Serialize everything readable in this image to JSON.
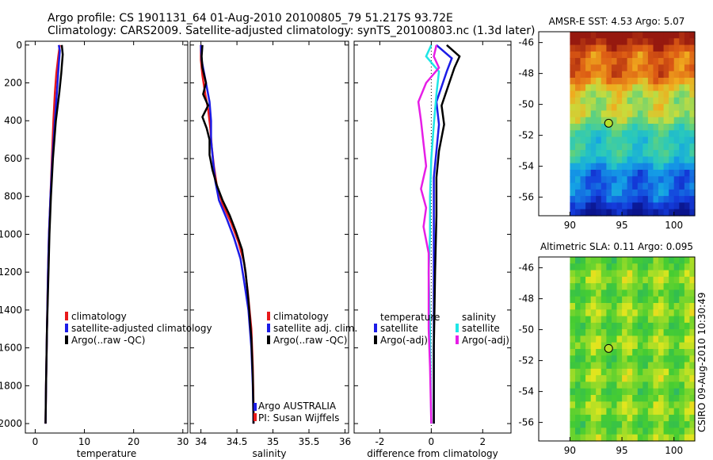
{
  "header": {
    "line1": "Argo profile: CS 1901131_64 01-Aug-2010 20100805_79 51.217S 93.72E",
    "line2": "Climatology: CARS2009. Satellite-adjusted climatology: synTS_20100803.nc (1.3d later)"
  },
  "footer_vertical": "CSIRO 09-Aug-2010 10:30:49",
  "colors": {
    "red": "#e8191b",
    "blue": "#1c1ce6",
    "black": "#000000",
    "cyan": "#1ee6e6",
    "magenta": "#e61ee6"
  },
  "chart_data": [
    {
      "type": "line",
      "id": "temperature",
      "xlabel": "temperature",
      "ylabel": "",
      "xlim": [
        -2,
        31
      ],
      "ylim": [
        2050,
        -20
      ],
      "xticks": [
        0,
        10,
        20,
        30
      ],
      "yticks": [
        0,
        200,
        400,
        600,
        800,
        1000,
        1200,
        1400,
        1600,
        1800,
        2000
      ],
      "xtick_labels": [
        "0",
        "10",
        "20",
        "30"
      ],
      "legend": [
        "climatology",
        "satellite-adjusted climatology",
        "Argo(..raw -QC)"
      ],
      "series": [
        {
          "name": "climatology",
          "color": "red",
          "values": [
            [
              5,
              0
            ],
            [
              4.7,
              60
            ],
            [
              4.3,
              150
            ],
            [
              4,
              250
            ],
            [
              3.7,
              400
            ],
            [
              3.4,
              600
            ],
            [
              3.1,
              800
            ],
            [
              2.8,
              1000
            ],
            [
              2.6,
              1200
            ],
            [
              2.4,
              1500
            ],
            [
              2.2,
              1800
            ],
            [
              2.1,
              2000
            ]
          ]
        },
        {
          "name": "satellite-adjusted climatology",
          "color": "blue",
          "values": [
            [
              4.8,
              0
            ],
            [
              5,
              30
            ],
            [
              4.8,
              100
            ],
            [
              4.4,
              250
            ],
            [
              4,
              400
            ],
            [
              3.5,
              600
            ],
            [
              3.1,
              800
            ],
            [
              2.8,
              1000
            ],
            [
              2.6,
              1200
            ],
            [
              2.4,
              1500
            ],
            [
              2.2,
              1800
            ],
            [
              2.1,
              2000
            ]
          ]
        },
        {
          "name": "Argo(..raw -QC)",
          "color": "black",
          "values": [
            [
              5.4,
              0
            ],
            [
              5.6,
              50
            ],
            [
              5.3,
              150
            ],
            [
              4.9,
              250
            ],
            [
              4.2,
              400
            ],
            [
              3.6,
              600
            ],
            [
              3.2,
              800
            ],
            [
              2.9,
              1000
            ],
            [
              2.7,
              1200
            ],
            [
              2.4,
              1500
            ],
            [
              2.2,
              1800
            ],
            [
              2.1,
              2000
            ]
          ]
        }
      ]
    },
    {
      "type": "line",
      "id": "salinity",
      "xlabel": "salinity",
      "xlim": [
        33.85,
        36.05
      ],
      "ylim": [
        2050,
        -20
      ],
      "xticks": [
        34,
        34.5,
        35,
        35.5,
        36
      ],
      "xtick_labels": [
        "34",
        "34.5",
        "35",
        "35.5",
        "36"
      ],
      "legend": [
        "climatology",
        "satellite adj. clim.",
        "Argo(..raw -QC)"
      ],
      "annotation": [
        "Argo AUSTRALIA",
        "PI: Susan Wijffels"
      ],
      "series": [
        {
          "name": "climatology",
          "color": "red",
          "values": [
            [
              34.0,
              0
            ],
            [
              34.0,
              80
            ],
            [
              34.02,
              160
            ],
            [
              34.06,
              260
            ],
            [
              34.1,
              340
            ],
            [
              34.13,
              440
            ],
            [
              34.15,
              540
            ],
            [
              34.18,
              640
            ],
            [
              34.22,
              740
            ],
            [
              34.3,
              840
            ],
            [
              34.42,
              940
            ],
            [
              34.52,
              1040
            ],
            [
              34.6,
              1150
            ],
            [
              34.65,
              1300
            ],
            [
              34.7,
              1500
            ],
            [
              34.72,
              1700
            ],
            [
              34.73,
              1900
            ],
            [
              34.73,
              2000
            ]
          ]
        },
        {
          "name": "satellite adj. clim.",
          "color": "blue",
          "values": [
            [
              34.0,
              0
            ],
            [
              34.01,
              80
            ],
            [
              34.06,
              180
            ],
            [
              34.12,
              300
            ],
            [
              34.14,
              400
            ],
            [
              34.14,
              500
            ],
            [
              34.17,
              620
            ],
            [
              34.2,
              720
            ],
            [
              34.25,
              820
            ],
            [
              34.36,
              920
            ],
            [
              34.46,
              1020
            ],
            [
              34.55,
              1130
            ],
            [
              34.6,
              1250
            ],
            [
              34.66,
              1400
            ],
            [
              34.7,
              1600
            ],
            [
              34.72,
              1800
            ],
            [
              34.73,
              2000
            ]
          ]
        },
        {
          "name": "Argo(..raw -QC)",
          "color": "black",
          "values": [
            [
              34.02,
              0
            ],
            [
              34.01,
              60
            ],
            [
              34.02,
              120
            ],
            [
              34.07,
              200
            ],
            [
              34.03,
              260
            ],
            [
              34.1,
              320
            ],
            [
              34.02,
              380
            ],
            [
              34.08,
              440
            ],
            [
              34.12,
              500
            ],
            [
              34.12,
              580
            ],
            [
              34.16,
              660
            ],
            [
              34.22,
              740
            ],
            [
              34.3,
              820
            ],
            [
              34.4,
              900
            ],
            [
              34.48,
              980
            ],
            [
              34.57,
              1080
            ],
            [
              34.62,
              1200
            ],
            [
              34.66,
              1350
            ],
            [
              34.7,
              1550
            ],
            [
              34.72,
              1750
            ],
            [
              34.73,
              1950
            ],
            [
              34.73,
              2000
            ]
          ]
        }
      ]
    },
    {
      "type": "line",
      "id": "difference",
      "xlabel": "difference from climatology",
      "xlim": [
        -3,
        3.1
      ],
      "ylim": [
        2050,
        -20
      ],
      "xticks": [
        -2,
        0,
        2
      ],
      "xtick_labels": [
        "-2",
        "0",
        "2"
      ],
      "legend_left_title": "temperature",
      "legend_right_title": "salinity",
      "legend": [
        "satellite",
        "Argo(-adj)",
        "satellite",
        "Argo(-adj)"
      ],
      "series": [
        {
          "name": "temperature satellite",
          "color": "blue",
          "values": [
            [
              0.2,
              0
            ],
            [
              0.8,
              70
            ],
            [
              0.6,
              140
            ],
            [
              0.2,
              300
            ],
            [
              0.3,
              420
            ],
            [
              0.2,
              560
            ],
            [
              0.1,
              700
            ],
            [
              0.1,
              900
            ],
            [
              0.1,
              1200
            ],
            [
              0.1,
              1600
            ],
            [
              0.1,
              2000
            ]
          ]
        },
        {
          "name": "temperature Argo(-adj)",
          "color": "black",
          "values": [
            [
              0.6,
              0
            ],
            [
              1.1,
              60
            ],
            [
              0.9,
              120
            ],
            [
              0.7,
              200
            ],
            [
              0.4,
              320
            ],
            [
              0.5,
              420
            ],
            [
              0.3,
              560
            ],
            [
              0.2,
              700
            ],
            [
              0.2,
              900
            ],
            [
              0.15,
              1200
            ],
            [
              0.1,
              1600
            ],
            [
              0.1,
              2000
            ]
          ]
        },
        {
          "name": "salinity satellite",
          "color": "cyan",
          "values": [
            [
              0,
              0
            ],
            [
              -0.2,
              60
            ],
            [
              0.3,
              140
            ],
            [
              0.2,
              260
            ],
            [
              0.1,
              420
            ],
            [
              0,
              600
            ],
            [
              -0.05,
              800
            ],
            [
              -0.05,
              1000
            ],
            [
              -0.1,
              1200
            ],
            [
              -0.05,
              1500
            ],
            [
              0,
              2000
            ]
          ]
        },
        {
          "name": "salinity Argo(-adj)",
          "color": "magenta",
          "values": [
            [
              0.2,
              0
            ],
            [
              0.1,
              60
            ],
            [
              0.3,
              120
            ],
            [
              -0.2,
              200
            ],
            [
              -0.5,
              300
            ],
            [
              -0.4,
              400
            ],
            [
              -0.3,
              520
            ],
            [
              -0.2,
              640
            ],
            [
              -0.4,
              760
            ],
            [
              -0.2,
              860
            ],
            [
              -0.3,
              960
            ],
            [
              -0.1,
              1100
            ],
            [
              -0.1,
              1300
            ],
            [
              -0.1,
              1500
            ],
            [
              -0.05,
              1700
            ],
            [
              0,
              2000
            ]
          ]
        }
      ]
    },
    {
      "type": "heatmap",
      "id": "sst_map",
      "title": "AMSR-E SST: 4.53 Argo: 5.07",
      "xlim": [
        87,
        102
      ],
      "ylim": [
        -57.2,
        -45.3
      ],
      "xticks": [
        90,
        95,
        100
      ],
      "xtick_labels": [
        "90",
        "95",
        "100"
      ],
      "yticks": [
        -46,
        -48,
        -50,
        -52,
        -54,
        -56
      ],
      "ytick_labels": [
        "-46",
        "-48",
        "-50",
        "-52",
        "-54",
        "-56"
      ],
      "argo_point": [
        93.72,
        -51.217
      ],
      "colormap": "jet-dark",
      "field_range": [
        90,
        102
      ]
    },
    {
      "type": "heatmap",
      "id": "sla_map",
      "title": "Altimetric SLA: 0.11 Argo: 0.095",
      "xlim": [
        87,
        102
      ],
      "ylim": [
        -57.2,
        -45.3
      ],
      "xticks": [
        90,
        95,
        100
      ],
      "xtick_labels": [
        "90",
        "95",
        "100"
      ],
      "yticks": [
        -46,
        -48,
        -50,
        -52,
        -54,
        -56
      ],
      "ytick_labels": [
        "-46",
        "-48",
        "-50",
        "-52",
        "-54",
        "-56"
      ],
      "argo_point": [
        93.72,
        -51.217
      ],
      "colormap": "green-yellow",
      "field_range": [
        90,
        102
      ]
    }
  ]
}
